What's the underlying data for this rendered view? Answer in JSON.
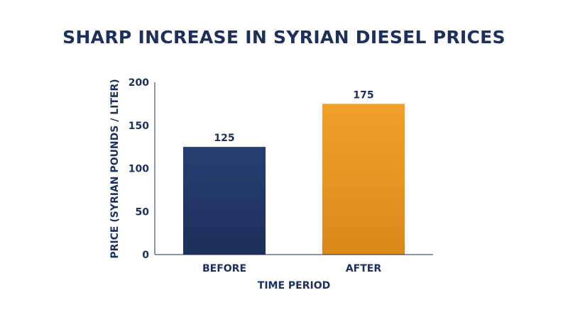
{
  "chart_data": {
    "type": "bar",
    "title": "SHARP INCREASE IN SYRIAN DIESEL PRICES",
    "xlabel": "TIME PERIOD",
    "ylabel": "PRICE (SYRIAN POUNDS / LITER)",
    "categories": [
      "BEFORE",
      "AFTER"
    ],
    "values": [
      125,
      175
    ],
    "data_labels": [
      "125",
      "175"
    ],
    "ylim": [
      0,
      200
    ],
    "yticks": [
      0,
      50,
      100,
      150,
      200
    ],
    "grid": false,
    "legend": "none",
    "bar_colors": [
      {
        "top": "#263f72",
        "bottom": "#1d2f5a"
      },
      {
        "top": "#f0a12a",
        "bottom": "#d8891a"
      }
    ]
  }
}
